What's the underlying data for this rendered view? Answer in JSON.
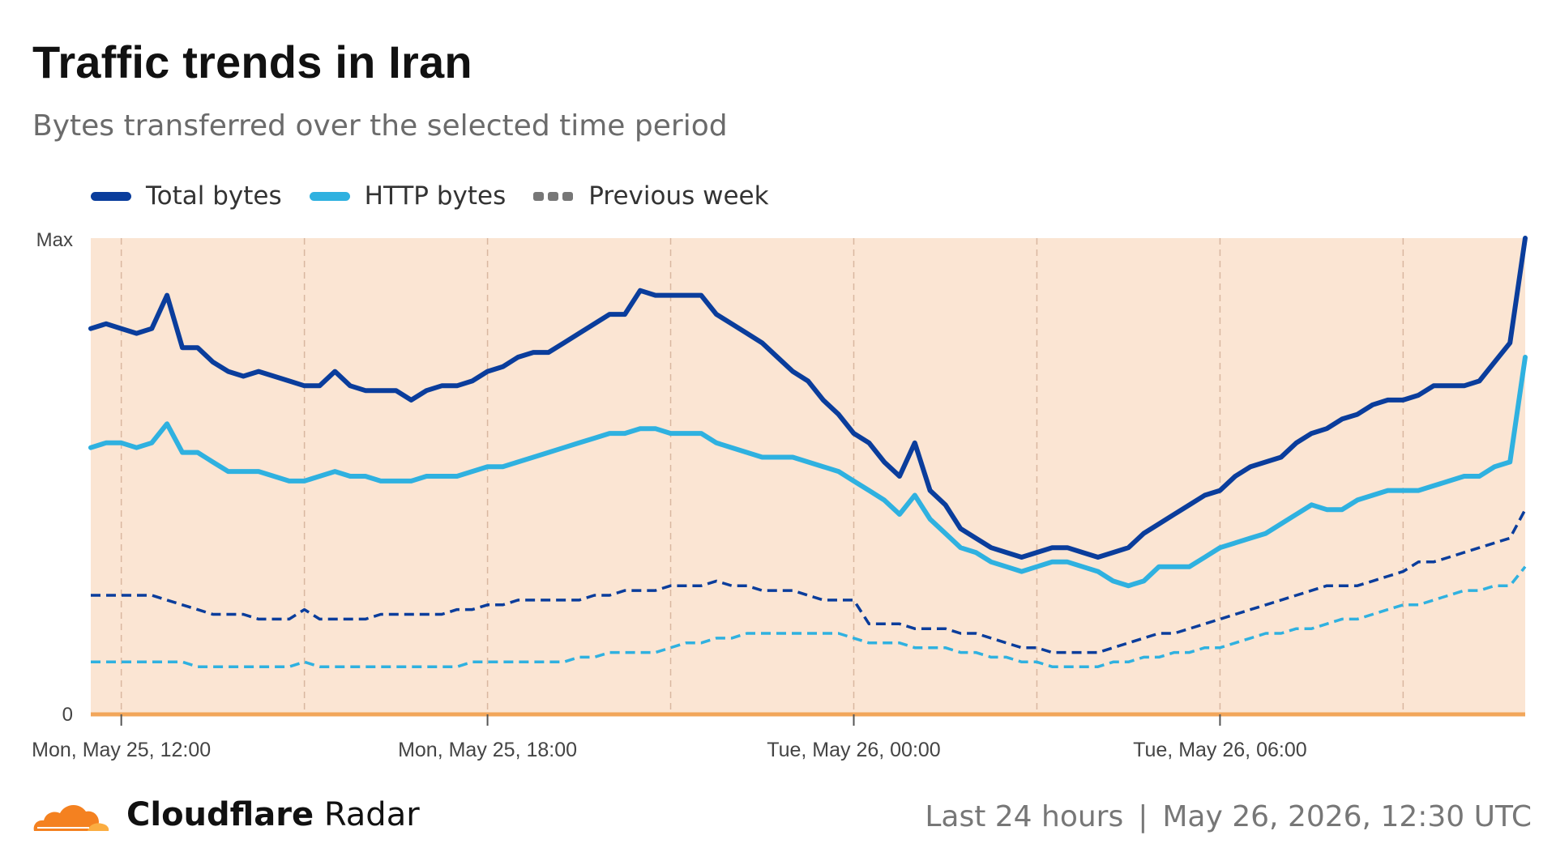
{
  "header": {
    "title": "Traffic trends in Iran",
    "subtitle": "Bytes transferred over the selected time period"
  },
  "legend": [
    {
      "label": "Total bytes",
      "color": "#0a3d9c",
      "style": "solid"
    },
    {
      "label": "HTTP bytes",
      "color": "#2fb1e0",
      "style": "solid"
    },
    {
      "label": "Previous week",
      "color": "#777777",
      "style": "dashed"
    }
  ],
  "footer": {
    "brand_bold": "Cloudflare",
    "brand_rest": " Radar",
    "period": "Last 24 hours",
    "separator": "|",
    "timestamp": "May 26, 2026, 12:30 UTC"
  },
  "colors": {
    "plot_bg": "#fbe5d3",
    "baseline": "#f2a65a",
    "gridline": "#d9b7a0",
    "logo_orange": "#f48120",
    "logo_light": "#fbad41"
  },
  "chart_data": {
    "type": "line",
    "ylabel_top": "Max",
    "ylabel_bottom": "0",
    "ylim": [
      0,
      100
    ],
    "x_ticks": [
      {
        "label": "Mon, May 25, 12:00",
        "index": 2
      },
      {
        "label": "Mon, May 25, 18:00",
        "index": 26
      },
      {
        "label": "Tue, May 26, 00:00",
        "index": 50
      },
      {
        "label": "Tue, May 26, 06:00",
        "index": 74
      }
    ],
    "grid": "vertical-dashed",
    "x_count": 95,
    "series": [
      {
        "name": "Total bytes",
        "color": "#0a3d9c",
        "dashed": false,
        "values": [
          81,
          82,
          81,
          80,
          81,
          88,
          77,
          77,
          74,
          72,
          71,
          72,
          71,
          70,
          69,
          69,
          72,
          69,
          68,
          68,
          68,
          66,
          68,
          69,
          69,
          70,
          72,
          73,
          75,
          76,
          76,
          78,
          80,
          82,
          84,
          84,
          89,
          88,
          88,
          88,
          88,
          84,
          82,
          80,
          78,
          75,
          72,
          70,
          66,
          63,
          59,
          57,
          53,
          50,
          57,
          47,
          44,
          39,
          37,
          35,
          34,
          33,
          34,
          35,
          35,
          34,
          33,
          34,
          35,
          38,
          40,
          42,
          44,
          46,
          47,
          50,
          52,
          53,
          54,
          57,
          59,
          60,
          62,
          63,
          65,
          66,
          66,
          67,
          69,
          69,
          69,
          70,
          74,
          78,
          100
        ]
      },
      {
        "name": "HTTP bytes",
        "color": "#2fb1e0",
        "dashed": false,
        "values": [
          56,
          57,
          57,
          56,
          57,
          61,
          55,
          55,
          53,
          51,
          51,
          51,
          50,
          49,
          49,
          50,
          51,
          50,
          50,
          49,
          49,
          49,
          50,
          50,
          50,
          51,
          52,
          52,
          53,
          54,
          55,
          56,
          57,
          58,
          59,
          59,
          60,
          60,
          59,
          59,
          59,
          57,
          56,
          55,
          54,
          54,
          54,
          53,
          52,
          51,
          49,
          47,
          45,
          42,
          46,
          41,
          38,
          35,
          34,
          32,
          31,
          30,
          31,
          32,
          32,
          31,
          30,
          28,
          27,
          28,
          31,
          31,
          31,
          33,
          35,
          36,
          37,
          38,
          40,
          42,
          44,
          43,
          43,
          45,
          46,
          47,
          47,
          47,
          48,
          49,
          50,
          50,
          52,
          53,
          75
        ]
      },
      {
        "name": "Previous week",
        "color": "#0a3d9c",
        "dashed": true,
        "values": [
          25,
          25,
          25,
          25,
          25,
          24,
          23,
          22,
          21,
          21,
          21,
          20,
          20,
          20,
          22,
          20,
          20,
          20,
          20,
          21,
          21,
          21,
          21,
          21,
          22,
          22,
          23,
          23,
          24,
          24,
          24,
          24,
          24,
          25,
          25,
          26,
          26,
          26,
          27,
          27,
          27,
          28,
          27,
          27,
          26,
          26,
          26,
          25,
          24,
          24,
          24,
          19,
          19,
          19,
          18,
          18,
          18,
          17,
          17,
          16,
          15,
          14,
          14,
          13,
          13,
          13,
          13,
          14,
          15,
          16,
          17,
          17,
          18,
          19,
          20,
          21,
          22,
          23,
          24,
          25,
          26,
          27,
          27,
          27,
          28,
          29,
          30,
          32,
          32,
          33,
          34,
          35,
          36,
          37,
          43
        ]
      },
      {
        "name": "Previous week",
        "color": "#2fb1e0",
        "dashed": true,
        "values": [
          11,
          11,
          11,
          11,
          11,
          11,
          11,
          10,
          10,
          10,
          10,
          10,
          10,
          10,
          11,
          10,
          10,
          10,
          10,
          10,
          10,
          10,
          10,
          10,
          10,
          11,
          11,
          11,
          11,
          11,
          11,
          11,
          12,
          12,
          13,
          13,
          13,
          13,
          14,
          15,
          15,
          16,
          16,
          17,
          17,
          17,
          17,
          17,
          17,
          17,
          16,
          15,
          15,
          15,
          14,
          14,
          14,
          13,
          13,
          12,
          12,
          11,
          11,
          10,
          10,
          10,
          10,
          11,
          11,
          12,
          12,
          13,
          13,
          14,
          14,
          15,
          16,
          17,
          17,
          18,
          18,
          19,
          20,
          20,
          21,
          22,
          23,
          23,
          24,
          25,
          26,
          26,
          27,
          27,
          31
        ]
      }
    ]
  }
}
